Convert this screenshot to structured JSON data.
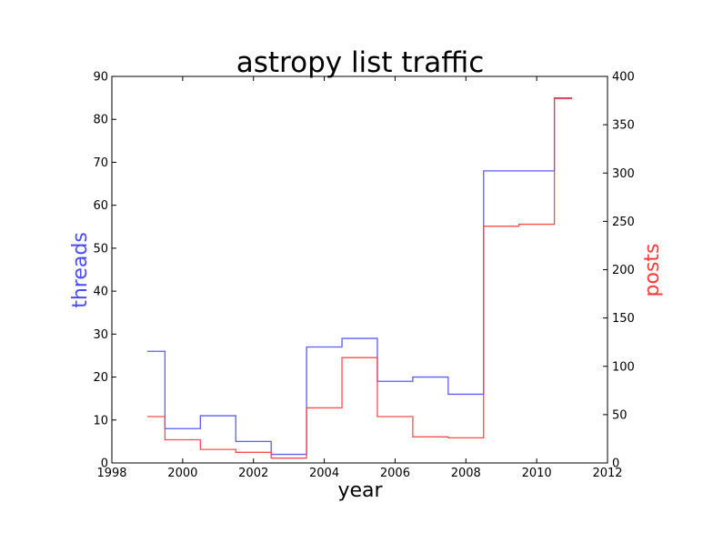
{
  "chart_data": {
    "type": "line",
    "step": true,
    "title": "astropy list traffic",
    "xlabel": "year",
    "x_ticks": [
      1998,
      2000,
      2002,
      2004,
      2006,
      2008,
      2010,
      2012
    ],
    "xlim": [
      1998,
      2012
    ],
    "y_left": {
      "label": "threads",
      "color": "#4a4aff",
      "ylim": [
        0,
        90
      ],
      "ticks": [
        0,
        10,
        20,
        30,
        40,
        50,
        60,
        70,
        80,
        90
      ]
    },
    "y_right": {
      "label": "posts",
      "color": "#ff3a3a",
      "ylim": [
        0,
        400
      ],
      "ticks": [
        0,
        50,
        100,
        150,
        200,
        250,
        300,
        350,
        400
      ]
    },
    "bin_edges": [
      1999.0,
      1999.5,
      2000.5,
      2001.5,
      2002.5,
      2003.5,
      2004.5,
      2005.5,
      2006.5,
      2007.5,
      2008.5,
      2009.5,
      2010.5,
      2011.0
    ],
    "series": [
      {
        "name": "threads",
        "axis": "left",
        "color": "#4a4aff",
        "values": [
          26,
          8,
          11,
          5,
          2,
          27,
          29,
          19,
          20,
          16,
          68,
          68,
          85
        ]
      },
      {
        "name": "posts",
        "axis": "right",
        "color": "#ff3a3a",
        "values": [
          48,
          24,
          14,
          11,
          5,
          57,
          109,
          48,
          27,
          26,
          245,
          247,
          377
        ]
      }
    ]
  }
}
